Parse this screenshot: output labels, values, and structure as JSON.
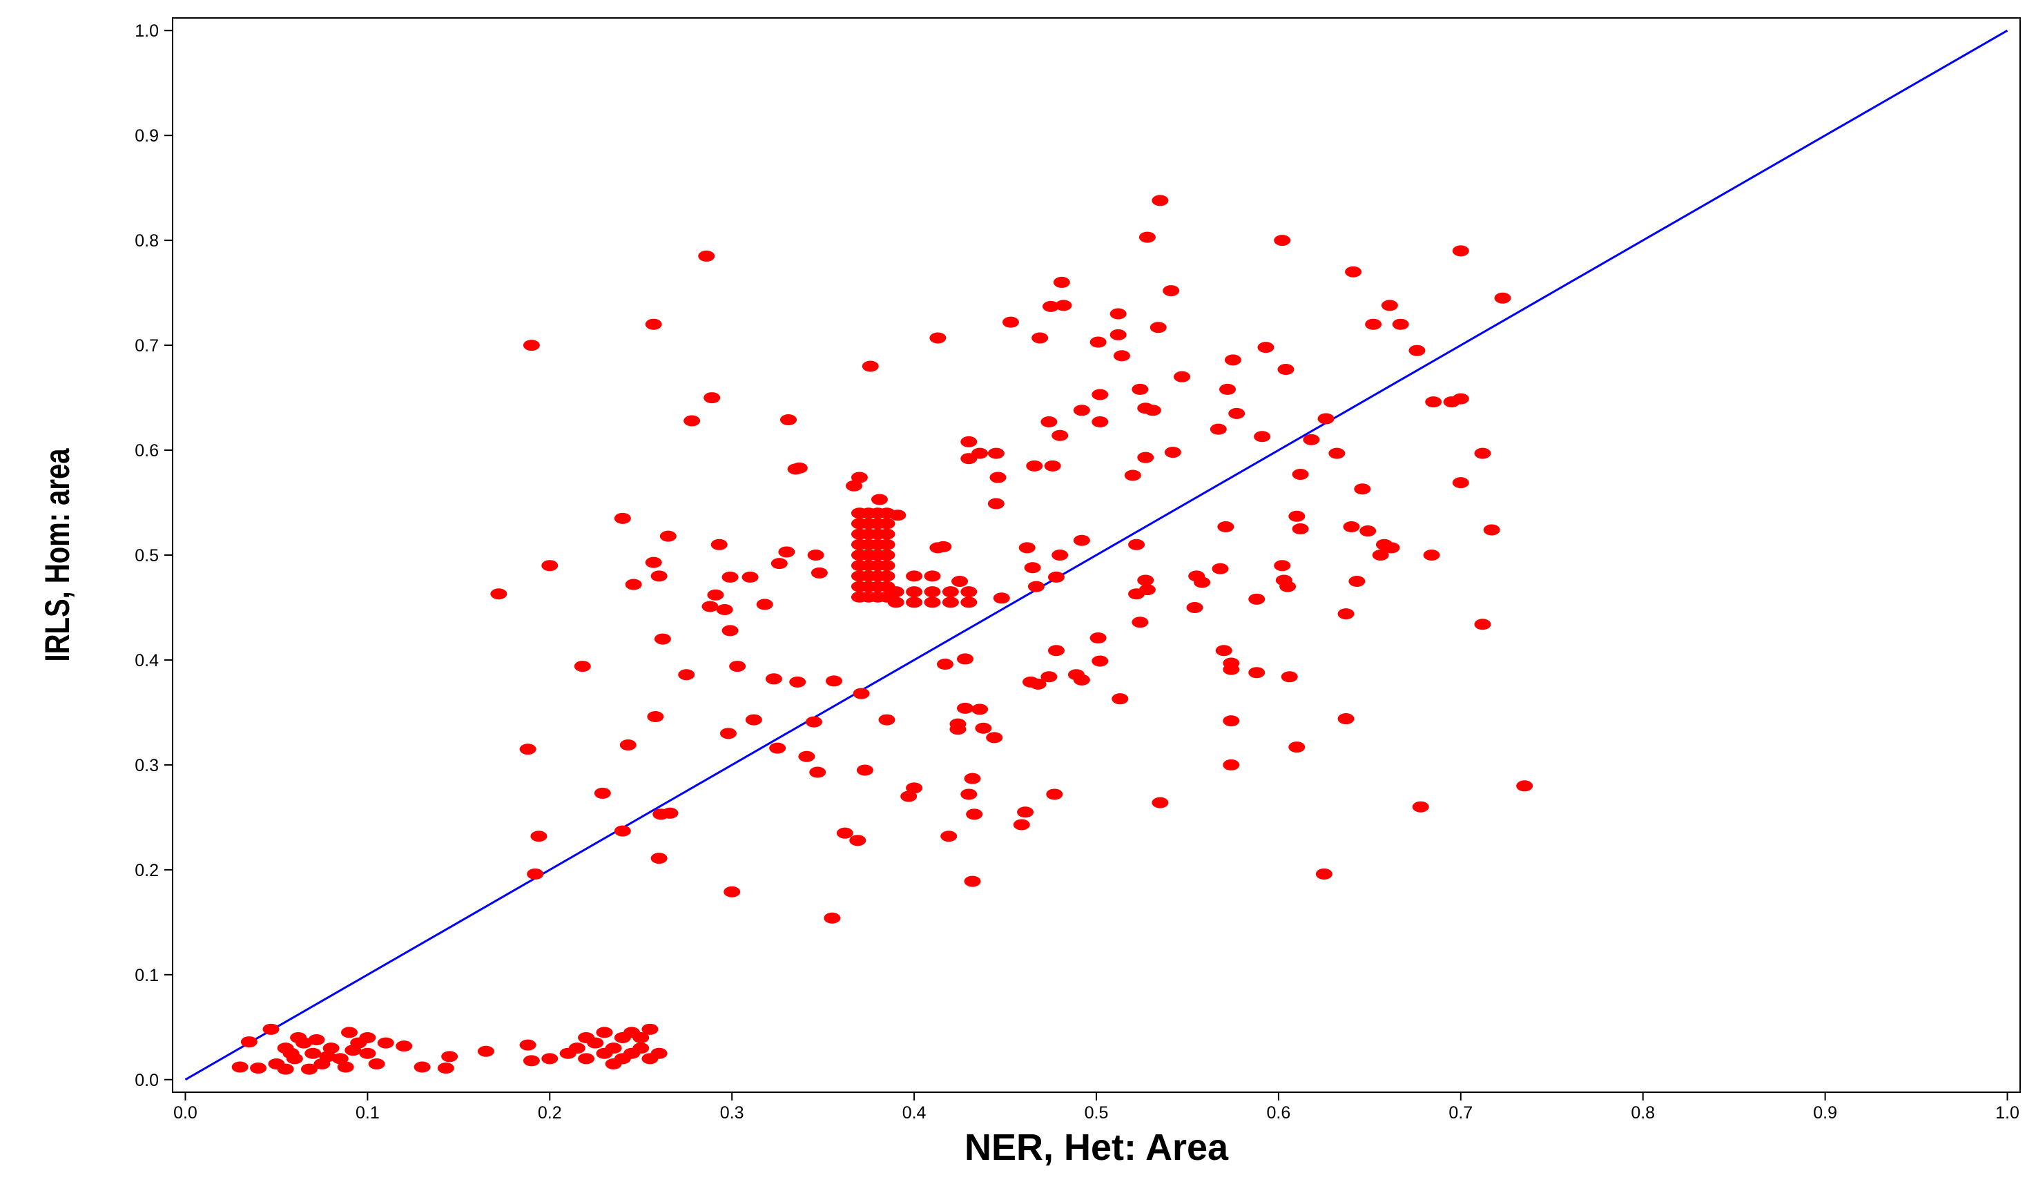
{
  "chart_data": {
    "type": "scatter",
    "x_label": "NER, Het: Area",
    "y_label": "IRLS, Hom: area",
    "xlim": [
      -0.007,
      1.007
    ],
    "ylim": [
      -0.012,
      1.012
    ],
    "xticks": [
      {
        "value": 0,
        "label": "0.0"
      },
      0.1,
      0.2,
      0.3,
      0.4,
      0.5,
      0.6,
      0.7,
      0.8,
      0.9,
      {
        "value": 1,
        "label": "1.0"
      }
    ],
    "yticks": [
      {
        "value": 0,
        "label": "0.0"
      },
      0.1,
      0.2,
      0.3,
      0.4,
      0.5,
      0.6,
      0.7,
      0.8,
      0.9,
      {
        "value": 1,
        "label": "1.0"
      }
    ],
    "grid": false,
    "reference_line": {
      "color": "#0000ff",
      "x": [
        0,
        1
      ],
      "y": [
        0,
        1
      ]
    },
    "points": {
      "color": "#ff0000",
      "x": [
        0.19,
        0.286,
        0.257,
        0.535,
        0.528,
        0.602,
        0.7,
        0.481,
        0.641,
        0.723,
        0.541,
        0.482,
        0.475,
        0.453,
        0.512,
        0.534,
        0.661,
        0.652,
        0.667,
        0.413,
        0.469,
        0.501,
        0.512,
        0.514,
        0.593,
        0.676,
        0.376,
        0.575,
        0.604,
        0.547,
        0.289,
        0.502,
        0.524,
        0.572,
        0.7,
        0.695,
        0.685,
        0.278,
        0.331,
        0.474,
        0.502,
        0.527,
        0.531,
        0.492,
        0.577,
        0.567,
        0.626,
        0.48,
        0.591,
        0.618,
        0.43,
        0.436,
        0.43,
        0.445,
        0.527,
        0.542,
        0.632,
        0.712,
        0.337,
        0.335,
        0.466,
        0.476,
        0.446,
        0.52,
        0.612,
        0.367,
        0.37,
        0.646,
        0.7,
        0.381,
        0.445,
        0.391,
        0.61,
        0.64,
        0.649,
        0.612,
        0.571,
        0.717,
        0.24,
        0.265,
        0.293,
        0.413,
        0.416,
        0.462,
        0.492,
        0.522,
        0.658,
        0.662,
        0.656,
        0.684,
        0.33,
        0.346,
        0.48,
        0.2,
        0.26,
        0.257,
        0.326,
        0.299,
        0.31,
        0.348,
        0.465,
        0.467,
        0.478,
        0.555,
        0.568,
        0.602,
        0.603,
        0.605,
        0.558,
        0.643,
        0.527,
        0.528,
        0.522,
        0.246,
        0.172,
        0.291,
        0.288,
        0.296,
        0.318,
        0.448,
        0.554,
        0.588,
        0.637,
        0.524,
        0.712,
        0.299,
        0.262,
        0.501,
        0.218,
        0.303,
        0.417,
        0.428,
        0.478,
        0.502,
        0.57,
        0.574,
        0.574,
        0.588,
        0.606,
        0.275,
        0.323,
        0.336,
        0.356,
        0.464,
        0.468,
        0.474,
        0.489,
        0.492,
        0.513,
        0.371,
        0.258,
        0.312,
        0.345,
        0.385,
        0.428,
        0.436,
        0.424,
        0.424,
        0.438,
        0.444,
        0.574,
        0.637,
        0.298,
        0.188,
        0.243,
        0.325,
        0.61,
        0.341,
        0.347,
        0.373,
        0.574,
        0.735,
        0.432,
        0.4,
        0.397,
        0.43,
        0.477,
        0.229,
        0.535,
        0.678,
        0.261,
        0.266,
        0.461,
        0.433,
        0.459,
        0.24,
        0.194,
        0.362,
        0.369,
        0.419,
        0.26,
        0.192,
        0.625,
        0.432,
        0.3,
        0.355,
        0.37,
        0.37,
        0.37,
        0.37,
        0.37,
        0.37,
        0.37,
        0.37,
        0.37,
        0.375,
        0.375,
        0.375,
        0.375,
        0.375,
        0.375,
        0.375,
        0.375,
        0.375,
        0.38,
        0.38,
        0.38,
        0.38,
        0.38,
        0.38,
        0.38,
        0.38,
        0.38,
        0.385,
        0.385,
        0.385,
        0.385,
        0.385,
        0.385,
        0.385,
        0.385,
        0.385,
        0.39,
        0.4,
        0.41,
        0.42,
        0.43,
        0.39,
        0.4,
        0.41,
        0.42,
        0.43,
        0.41,
        0.4,
        0.425,
        0.035,
        0.047,
        0.03,
        0.04,
        0.05,
        0.055,
        0.06,
        0.065,
        0.07,
        0.075,
        0.08,
        0.085,
        0.09,
        0.095,
        0.1,
        0.105,
        0.11,
        0.12,
        0.13,
        0.145,
        0.143,
        0.165,
        0.188,
        0.055,
        0.062,
        0.072,
        0.088,
        0.1,
        0.058,
        0.068,
        0.078,
        0.092,
        0.2,
        0.21,
        0.215,
        0.22,
        0.225,
        0.23,
        0.23,
        0.235,
        0.24,
        0.24,
        0.245,
        0.25,
        0.255,
        0.255,
        0.26,
        0.22,
        0.235,
        0.245,
        0.19,
        0.25
      ],
      "y": [
        0.7,
        0.785,
        0.72,
        0.838,
        0.803,
        0.8,
        0.79,
        0.76,
        0.77,
        0.745,
        0.752,
        0.738,
        0.737,
        0.722,
        0.73,
        0.717,
        0.738,
        0.72,
        0.72,
        0.707,
        0.707,
        0.703,
        0.71,
        0.69,
        0.698,
        0.695,
        0.68,
        0.686,
        0.677,
        0.67,
        0.65,
        0.653,
        0.658,
        0.658,
        0.649,
        0.646,
        0.646,
        0.628,
        0.629,
        0.627,
        0.627,
        0.64,
        0.638,
        0.638,
        0.635,
        0.62,
        0.63,
        0.614,
        0.613,
        0.61,
        0.608,
        0.597,
        0.592,
        0.597,
        0.593,
        0.598,
        0.597,
        0.597,
        0.583,
        0.582,
        0.585,
        0.585,
        0.574,
        0.576,
        0.577,
        0.566,
        0.574,
        0.563,
        0.569,
        0.553,
        0.549,
        0.538,
        0.537,
        0.527,
        0.523,
        0.525,
        0.527,
        0.524,
        0.535,
        0.518,
        0.51,
        0.507,
        0.508,
        0.507,
        0.514,
        0.51,
        0.51,
        0.507,
        0.5,
        0.5,
        0.503,
        0.5,
        0.5,
        0.49,
        0.48,
        0.493,
        0.492,
        0.479,
        0.479,
        0.483,
        0.488,
        0.47,
        0.479,
        0.48,
        0.487,
        0.49,
        0.476,
        0.47,
        0.474,
        0.475,
        0.476,
        0.467,
        0.463,
        0.472,
        0.463,
        0.462,
        0.451,
        0.448,
        0.453,
        0.459,
        0.45,
        0.458,
        0.444,
        0.436,
        0.434,
        0.428,
        0.42,
        0.421,
        0.394,
        0.394,
        0.396,
        0.401,
        0.409,
        0.399,
        0.409,
        0.397,
        0.391,
        0.388,
        0.384,
        0.386,
        0.382,
        0.379,
        0.38,
        0.379,
        0.377,
        0.384,
        0.386,
        0.381,
        0.363,
        0.368,
        0.346,
        0.343,
        0.341,
        0.343,
        0.354,
        0.353,
        0.339,
        0.334,
        0.335,
        0.326,
        0.342,
        0.344,
        0.33,
        0.315,
        0.319,
        0.316,
        0.317,
        0.308,
        0.293,
        0.295,
        0.3,
        0.28,
        0.287,
        0.278,
        0.27,
        0.272,
        0.272,
        0.273,
        0.264,
        0.26,
        0.253,
        0.254,
        0.255,
        0.253,
        0.243,
        0.237,
        0.232,
        0.235,
        0.228,
        0.232,
        0.211,
        0.196,
        0.196,
        0.189,
        0.179,
        0.154,
        0.46,
        0.47,
        0.48,
        0.49,
        0.5,
        0.51,
        0.52,
        0.53,
        0.54,
        0.46,
        0.47,
        0.48,
        0.49,
        0.5,
        0.51,
        0.52,
        0.53,
        0.54,
        0.46,
        0.47,
        0.48,
        0.49,
        0.5,
        0.51,
        0.52,
        0.53,
        0.54,
        0.46,
        0.47,
        0.48,
        0.49,
        0.5,
        0.51,
        0.52,
        0.53,
        0.54,
        0.455,
        0.455,
        0.455,
        0.455,
        0.455,
        0.465,
        0.465,
        0.465,
        0.465,
        0.465,
        0.48,
        0.48,
        0.475,
        0.036,
        0.048,
        0.012,
        0.011,
        0.015,
        0.03,
        0.02,
        0.035,
        0.025,
        0.015,
        0.03,
        0.02,
        0.045,
        0.035,
        0.025,
        0.015,
        0.035,
        0.032,
        0.012,
        0.022,
        0.011,
        0.027,
        0.033,
        0.01,
        0.04,
        0.038,
        0.012,
        0.04,
        0.025,
        0.01,
        0.022,
        0.028,
        0.02,
        0.025,
        0.03,
        0.02,
        0.035,
        0.045,
        0.025,
        0.03,
        0.04,
        0.02,
        0.045,
        0.03,
        0.02,
        0.048,
        0.025,
        0.04,
        0.015,
        0.025,
        0.018,
        0.04
      ]
    }
  }
}
